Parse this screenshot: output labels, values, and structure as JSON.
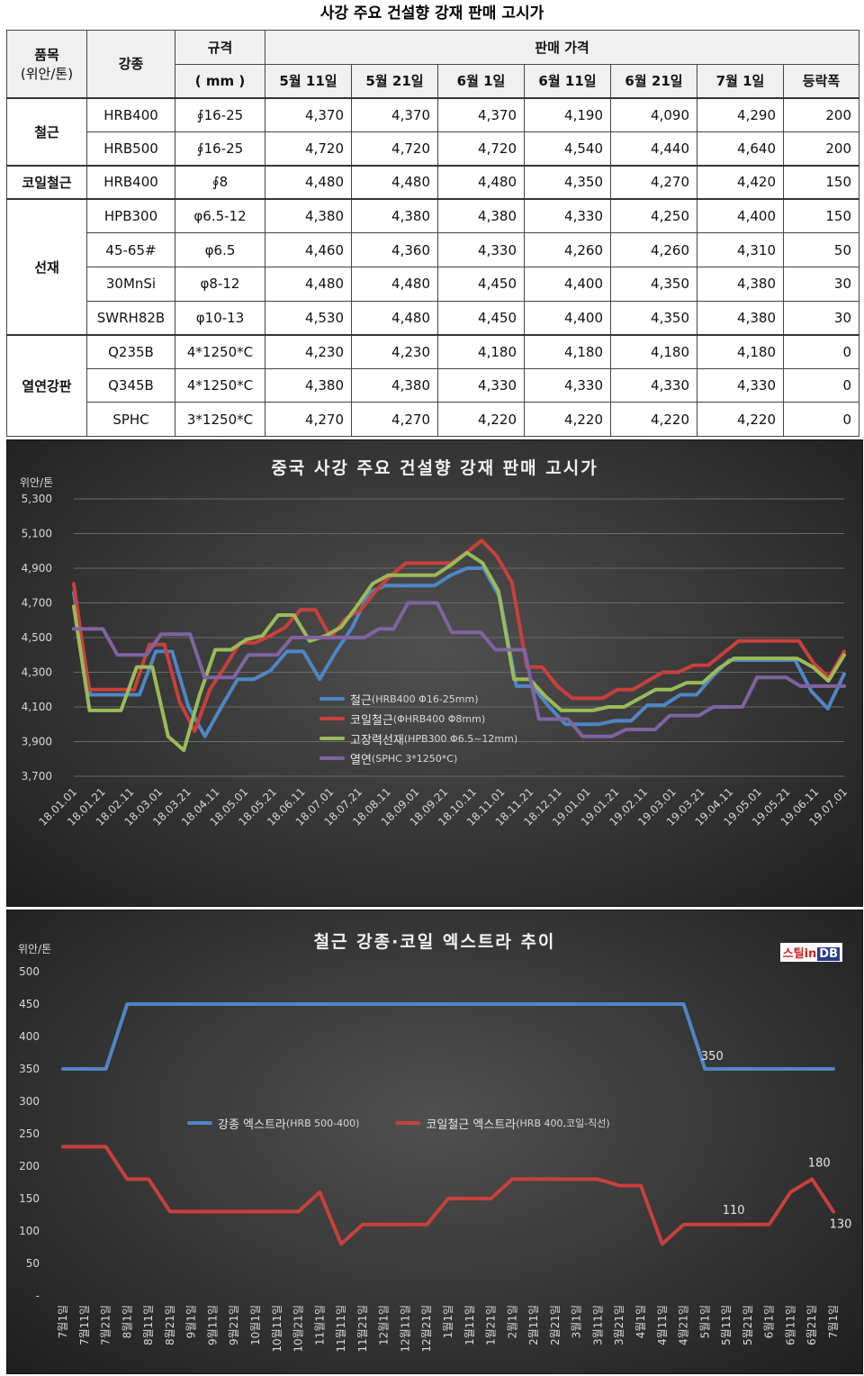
{
  "page_title": "사강 주요 건설향 강재 판매 고시가",
  "table": {
    "h_item": "품목",
    "h_unit": "(위안/톤)",
    "h_grade": "강종",
    "h_spec": "규격",
    "h_spec_unit": "( mm )",
    "h_price": "판매 가격",
    "dates": [
      "5월 11일",
      "5월 21일",
      "6월 1일",
      "6월 11일",
      "6월 21일",
      "7월 1일",
      "등락폭"
    ],
    "groups": [
      {
        "category": "철근",
        "rows": [
          {
            "grade": "HRB400",
            "spec": "∮16-25",
            "values": [
              "4,370",
              "4,370",
              "4,370",
              "4,190",
              "4,090",
              "4,290",
              "200"
            ]
          },
          {
            "grade": "HRB500",
            "spec": "∮16-25",
            "values": [
              "4,720",
              "4,720",
              "4,720",
              "4,540",
              "4,440",
              "4,640",
              "200"
            ]
          }
        ]
      },
      {
        "category": "코일철근",
        "rows": [
          {
            "grade": "HRB400",
            "spec": "∮8",
            "values": [
              "4,480",
              "4,480",
              "4,480",
              "4,350",
              "4,270",
              "4,420",
              "150"
            ]
          }
        ]
      },
      {
        "category": "선재",
        "rows": [
          {
            "grade": "HPB300",
            "spec": "φ6.5-12",
            "values": [
              "4,380",
              "4,380",
              "4,380",
              "4,330",
              "4,250",
              "4,400",
              "150"
            ]
          },
          {
            "grade": "45-65#",
            "spec": "φ6.5",
            "values": [
              "4,460",
              "4,360",
              "4,330",
              "4,260",
              "4,260",
              "4,310",
              "50"
            ]
          },
          {
            "grade": "30MnSi",
            "spec": "φ8-12",
            "values": [
              "4,480",
              "4,480",
              "4,450",
              "4,400",
              "4,350",
              "4,380",
              "30"
            ]
          },
          {
            "grade": "SWRH82B",
            "spec": "φ10-13",
            "values": [
              "4,530",
              "4,480",
              "4,450",
              "4,400",
              "4,350",
              "4,380",
              "30"
            ]
          }
        ]
      },
      {
        "category": "열연강판",
        "rows": [
          {
            "grade": "Q235B",
            "spec": "4*1250*C",
            "values": [
              "4,230",
              "4,230",
              "4,180",
              "4,180",
              "4,180",
              "4,180",
              "0"
            ]
          },
          {
            "grade": "Q345B",
            "spec": "4*1250*C",
            "values": [
              "4,380",
              "4,380",
              "4,330",
              "4,330",
              "4,330",
              "4,330",
              "0"
            ]
          },
          {
            "grade": "SPHC",
            "spec": "3*1250*C",
            "values": [
              "4,270",
              "4,270",
              "4,220",
              "4,220",
              "4,220",
              "4,220",
              "0"
            ]
          }
        ]
      }
    ]
  },
  "chart_data": [
    {
      "type": "line",
      "title": "중국 사강 주요 건설향 강재 판매 고시가",
      "ylabel": "위안/톤",
      "ylim": [
        3700,
        5300
      ],
      "yticks": [
        "3,700",
        "3,900",
        "4,100",
        "4,300",
        "4,500",
        "4,700",
        "4,900",
        "5,100",
        "5,300"
      ],
      "x_tick_labels": [
        "18.01.01",
        "18.01.21",
        "18.02.11",
        "18.03.01",
        "18.03.21",
        "18.04.11",
        "18.05.01",
        "18.05.21",
        "18.06.11",
        "18.07.01",
        "18.07.21",
        "18.08.11",
        "18.09.01",
        "18.09.21",
        "18.10.11",
        "18.11.01",
        "18.11.21",
        "18.12.11",
        "19.01.01",
        "19.01.21",
        "19.02.11",
        "19.03.01",
        "19.03.21",
        "19.04.11",
        "19.05.01",
        "19.05.21",
        "19.06.11",
        "19.07.01"
      ],
      "legend_position": "center",
      "series": [
        {
          "name": "철근",
          "detail": "(HRB400 Φ16-25mm)",
          "color": "#4f86c6",
          "values": [
            4760,
            4170,
            4170,
            4170,
            4170,
            4420,
            4420,
            4100,
            3930,
            4100,
            4260,
            4260,
            4310,
            4420,
            4420,
            4260,
            4420,
            4560,
            4760,
            4800,
            4800,
            4800,
            4800,
            4860,
            4900,
            4900,
            4730,
            4220,
            4220,
            4100,
            4000,
            4000,
            4000,
            4020,
            4020,
            4110,
            4110,
            4170,
            4170,
            4280,
            4370,
            4370,
            4370,
            4370,
            4370,
            4190,
            4090,
            4290
          ]
        },
        {
          "name": "코일철근",
          "detail": "(ΦHRB400 Φ8mm)",
          "color": "#c9403c",
          "values": [
            4810,
            4200,
            4200,
            4200,
            4200,
            4460,
            4460,
            4130,
            3960,
            4200,
            4330,
            4470,
            4470,
            4510,
            4560,
            4660,
            4660,
            4500,
            4610,
            4660,
            4770,
            4860,
            4930,
            4930,
            4930,
            4930,
            4990,
            5060,
            4970,
            4820,
            4330,
            4330,
            4220,
            4150,
            4150,
            4150,
            4200,
            4200,
            4250,
            4300,
            4300,
            4340,
            4340,
            4410,
            4480,
            4480,
            4480,
            4480,
            4480,
            4350,
            4270,
            4420
          ]
        },
        {
          "name": "고장력선재",
          "detail": "(HPB300 Φ6.5~12mm)",
          "color": "#9bbb59",
          "values": [
            4680,
            4080,
            4080,
            4080,
            4330,
            4330,
            3930,
            3850,
            4170,
            4430,
            4430,
            4490,
            4510,
            4630,
            4630,
            4480,
            4510,
            4560,
            4680,
            4810,
            4860,
            4860,
            4860,
            4860,
            4920,
            4990,
            4930,
            4770,
            4260,
            4260,
            4160,
            4080,
            4080,
            4080,
            4100,
            4100,
            4150,
            4200,
            4200,
            4240,
            4240,
            4320,
            4380,
            4380,
            4380,
            4380,
            4380,
            4330,
            4250,
            4400
          ]
        },
        {
          "name": "열연",
          "detail": "(SPHC 3*1250*C)",
          "color": "#8064a2",
          "values": [
            4550,
            4550,
            4550,
            4400,
            4400,
            4400,
            4520,
            4520,
            4520,
            4270,
            4270,
            4270,
            4400,
            4400,
            4400,
            4500,
            4500,
            4500,
            4500,
            4500,
            4500,
            4550,
            4550,
            4700,
            4700,
            4700,
            4530,
            4530,
            4530,
            4430,
            4430,
            4430,
            4030,
            4030,
            4030,
            3930,
            3930,
            3930,
            3970,
            3970,
            3970,
            4050,
            4050,
            4050,
            4100,
            4100,
            4100,
            4270,
            4270,
            4270,
            4220,
            4220,
            4220,
            4220
          ]
        }
      ]
    },
    {
      "type": "line",
      "title": "철근 강종·코일 엑스트라 추이",
      "ylabel": "위안/톤",
      "ylim": [
        0,
        500
      ],
      "yticks": [
        "-",
        "50",
        "100",
        "150",
        "200",
        "250",
        "300",
        "350",
        "400",
        "450",
        "500"
      ],
      "categories": [
        "7월1일",
        "7월11일",
        "7월21일",
        "8월1일",
        "8월11일",
        "8월21일",
        "9월1일",
        "9월11일",
        "9월21일",
        "10월1일",
        "10월11일",
        "10월21일",
        "11월1일",
        "11월11일",
        "11월21일",
        "12월1일",
        "12월11일",
        "12월21일",
        "1월1일",
        "1월11일",
        "1월21일",
        "2월1일",
        "2월11일",
        "2월21일",
        "3월1일",
        "3월11일",
        "3월21일",
        "4월1일",
        "4월11일",
        "4월21일",
        "5월1일",
        "5월11일",
        "5월21일",
        "6월1일",
        "6월11일",
        "6월21일",
        "7월1일"
      ],
      "legend_position": "center",
      "annotations": [
        "350",
        "110",
        "180",
        "130"
      ],
      "series": [
        {
          "name": "강종 엑스트라",
          "detail": "(HRB 500-400)",
          "color": "#4f86c6",
          "values": [
            350,
            350,
            350,
            450,
            450,
            450,
            450,
            450,
            450,
            450,
            450,
            450,
            450,
            450,
            450,
            450,
            450,
            450,
            450,
            450,
            450,
            450,
            450,
            450,
            450,
            450,
            450,
            450,
            450,
            450,
            350,
            350,
            350,
            350,
            350,
            350,
            350
          ]
        },
        {
          "name": "코일철근 엑스트라",
          "detail": "(HRB 400,코일-직선)",
          "color": "#c9403c",
          "values": [
            230,
            230,
            230,
            180,
            180,
            130,
            130,
            130,
            130,
            130,
            130,
            130,
            160,
            80,
            110,
            110,
            110,
            110,
            150,
            150,
            150,
            180,
            180,
            180,
            180,
            180,
            170,
            170,
            80,
            110,
            110,
            110,
            110,
            110,
            160,
            180,
            130
          ]
        }
      ]
    }
  ],
  "logo": {
    "text_a": "스틸in",
    "text_b": "DB"
  }
}
